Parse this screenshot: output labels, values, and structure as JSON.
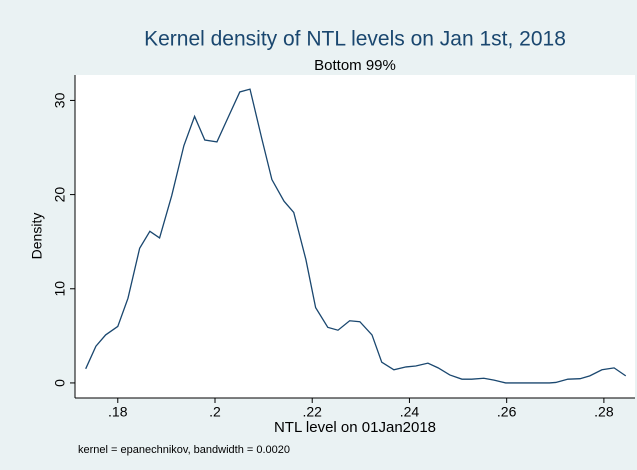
{
  "chart_data": {
    "type": "line",
    "title": "Kernel density of NTL levels on Jan 1st, 2018",
    "subtitle": "Bottom 99%",
    "x_label": "NTL level on 01Jan2018",
    "y_label": "Density",
    "note": "kernel = epanechnikov, bandwidth = 0.0020",
    "color": "#1a476f",
    "grid": false,
    "x": [
      0.1734,
      0.1755,
      0.1775,
      0.18,
      0.1821,
      0.1845,
      0.1866,
      0.1886,
      0.1911,
      0.1936,
      0.1958,
      0.1979,
      0.2004,
      0.2027,
      0.2051,
      0.2072,
      0.2096,
      0.2117,
      0.2142,
      0.2162,
      0.2187,
      0.2207,
      0.2232,
      0.2253,
      0.2277,
      0.2298,
      0.2323,
      0.2343,
      0.2368,
      0.2393,
      0.2413,
      0.2438,
      0.2459,
      0.2483,
      0.2508,
      0.2528,
      0.2553,
      0.2574,
      0.2598,
      0.2619,
      0.2643,
      0.2664,
      0.2688,
      0.2701,
      0.2726,
      0.2751,
      0.2771,
      0.2796,
      0.2821,
      0.2845
    ],
    "values": [
      1.5,
      3.9,
      5.1,
      6.0,
      9.0,
      14.3,
      16.1,
      15.4,
      19.9,
      25.2,
      28.3,
      25.8,
      25.6,
      28.2,
      30.9,
      31.2,
      26.0,
      21.6,
      19.3,
      18.1,
      13.1,
      8.0,
      5.9,
      5.6,
      6.6,
      6.5,
      5.1,
      2.2,
      1.4,
      1.7,
      1.8,
      2.1,
      1.6,
      0.85,
      0.4,
      0.4,
      0.5,
      0.3,
      0,
      0,
      0,
      0,
      0,
      0.05,
      0.4,
      0.45,
      0.75,
      1.4,
      1.6,
      0.75
    ],
    "xlim": [
      0.1712,
      0.2864
    ],
    "ylim": [
      -1.6,
      32.7
    ],
    "xticks": [
      {
        "value": 0.18,
        "label": ".18"
      },
      {
        "value": 0.2,
        "label": ".2"
      },
      {
        "value": 0.22,
        "label": ".22"
      },
      {
        "value": 0.24,
        "label": ".24"
      },
      {
        "value": 0.26,
        "label": ".26"
      },
      {
        "value": 0.28,
        "label": ".28"
      }
    ],
    "yticks": [
      0,
      10,
      20,
      30
    ]
  }
}
